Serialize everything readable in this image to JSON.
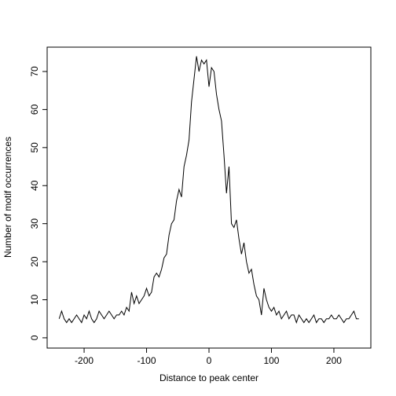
{
  "chart_data": {
    "type": "line",
    "xlabel": "Distance to peak center",
    "ylabel": "Number of motif occurrences",
    "x": [
      -240,
      -236,
      -232,
      -228,
      -224,
      -220,
      -216,
      -212,
      -208,
      -204,
      -200,
      -196,
      -192,
      -188,
      -184,
      -180,
      -176,
      -172,
      -168,
      -164,
      -160,
      -156,
      -152,
      -148,
      -144,
      -140,
      -136,
      -132,
      -128,
      -124,
      -120,
      -116,
      -112,
      -108,
      -104,
      -100,
      -96,
      -92,
      -88,
      -84,
      -80,
      -76,
      -72,
      -68,
      -64,
      -60,
      -56,
      -52,
      -48,
      -44,
      -40,
      -36,
      -32,
      -28,
      -24,
      -20,
      -16,
      -12,
      -8,
      -4,
      0,
      4,
      8,
      12,
      16,
      20,
      24,
      28,
      32,
      36,
      40,
      44,
      48,
      52,
      56,
      60,
      64,
      68,
      72,
      76,
      80,
      84,
      88,
      92,
      96,
      100,
      104,
      108,
      112,
      116,
      120,
      124,
      128,
      132,
      136,
      140,
      144,
      148,
      152,
      156,
      160,
      164,
      168,
      172,
      176,
      180,
      184,
      188,
      192,
      196,
      200,
      204,
      208,
      212,
      216,
      220,
      224,
      228,
      232,
      236,
      240
    ],
    "series": [
      {
        "color": "#000000",
        "values": [
          5,
          7,
          5,
          4,
          5,
          4,
          5,
          6,
          5,
          4,
          6,
          5,
          7,
          5,
          4,
          5,
          7,
          6,
          5,
          6,
          7,
          6,
          5,
          6,
          6,
          7,
          6,
          8,
          7,
          12,
          9,
          11,
          9,
          10,
          11,
          13,
          11,
          12,
          16,
          17,
          16,
          18,
          21,
          22,
          27,
          30,
          31,
          36,
          39,
          37,
          45,
          48,
          52,
          62,
          68,
          74,
          70,
          73,
          72,
          73,
          66,
          71,
          70,
          64,
          60,
          57,
          48,
          38,
          45,
          30,
          29,
          31,
          26,
          22,
          25,
          20,
          17,
          18,
          14,
          11,
          10,
          6,
          13,
          10,
          8,
          7,
          8,
          6,
          7,
          5,
          6,
          7,
          5,
          6,
          6,
          4,
          6,
          5,
          4,
          5,
          4,
          5,
          6,
          4,
          5,
          5,
          4,
          5,
          5,
          6,
          5,
          5,
          6,
          5,
          4,
          5,
          5,
          6,
          7,
          5,
          5
        ]
      }
    ],
    "xlim": [
      -259.2,
      259.2
    ],
    "xticks": [
      -200,
      -100,
      0,
      100,
      200
    ],
    "ylim": [
      -2.7,
      76.4
    ],
    "yticks": [
      0,
      10,
      20,
      30,
      40,
      50,
      60,
      70
    ]
  }
}
